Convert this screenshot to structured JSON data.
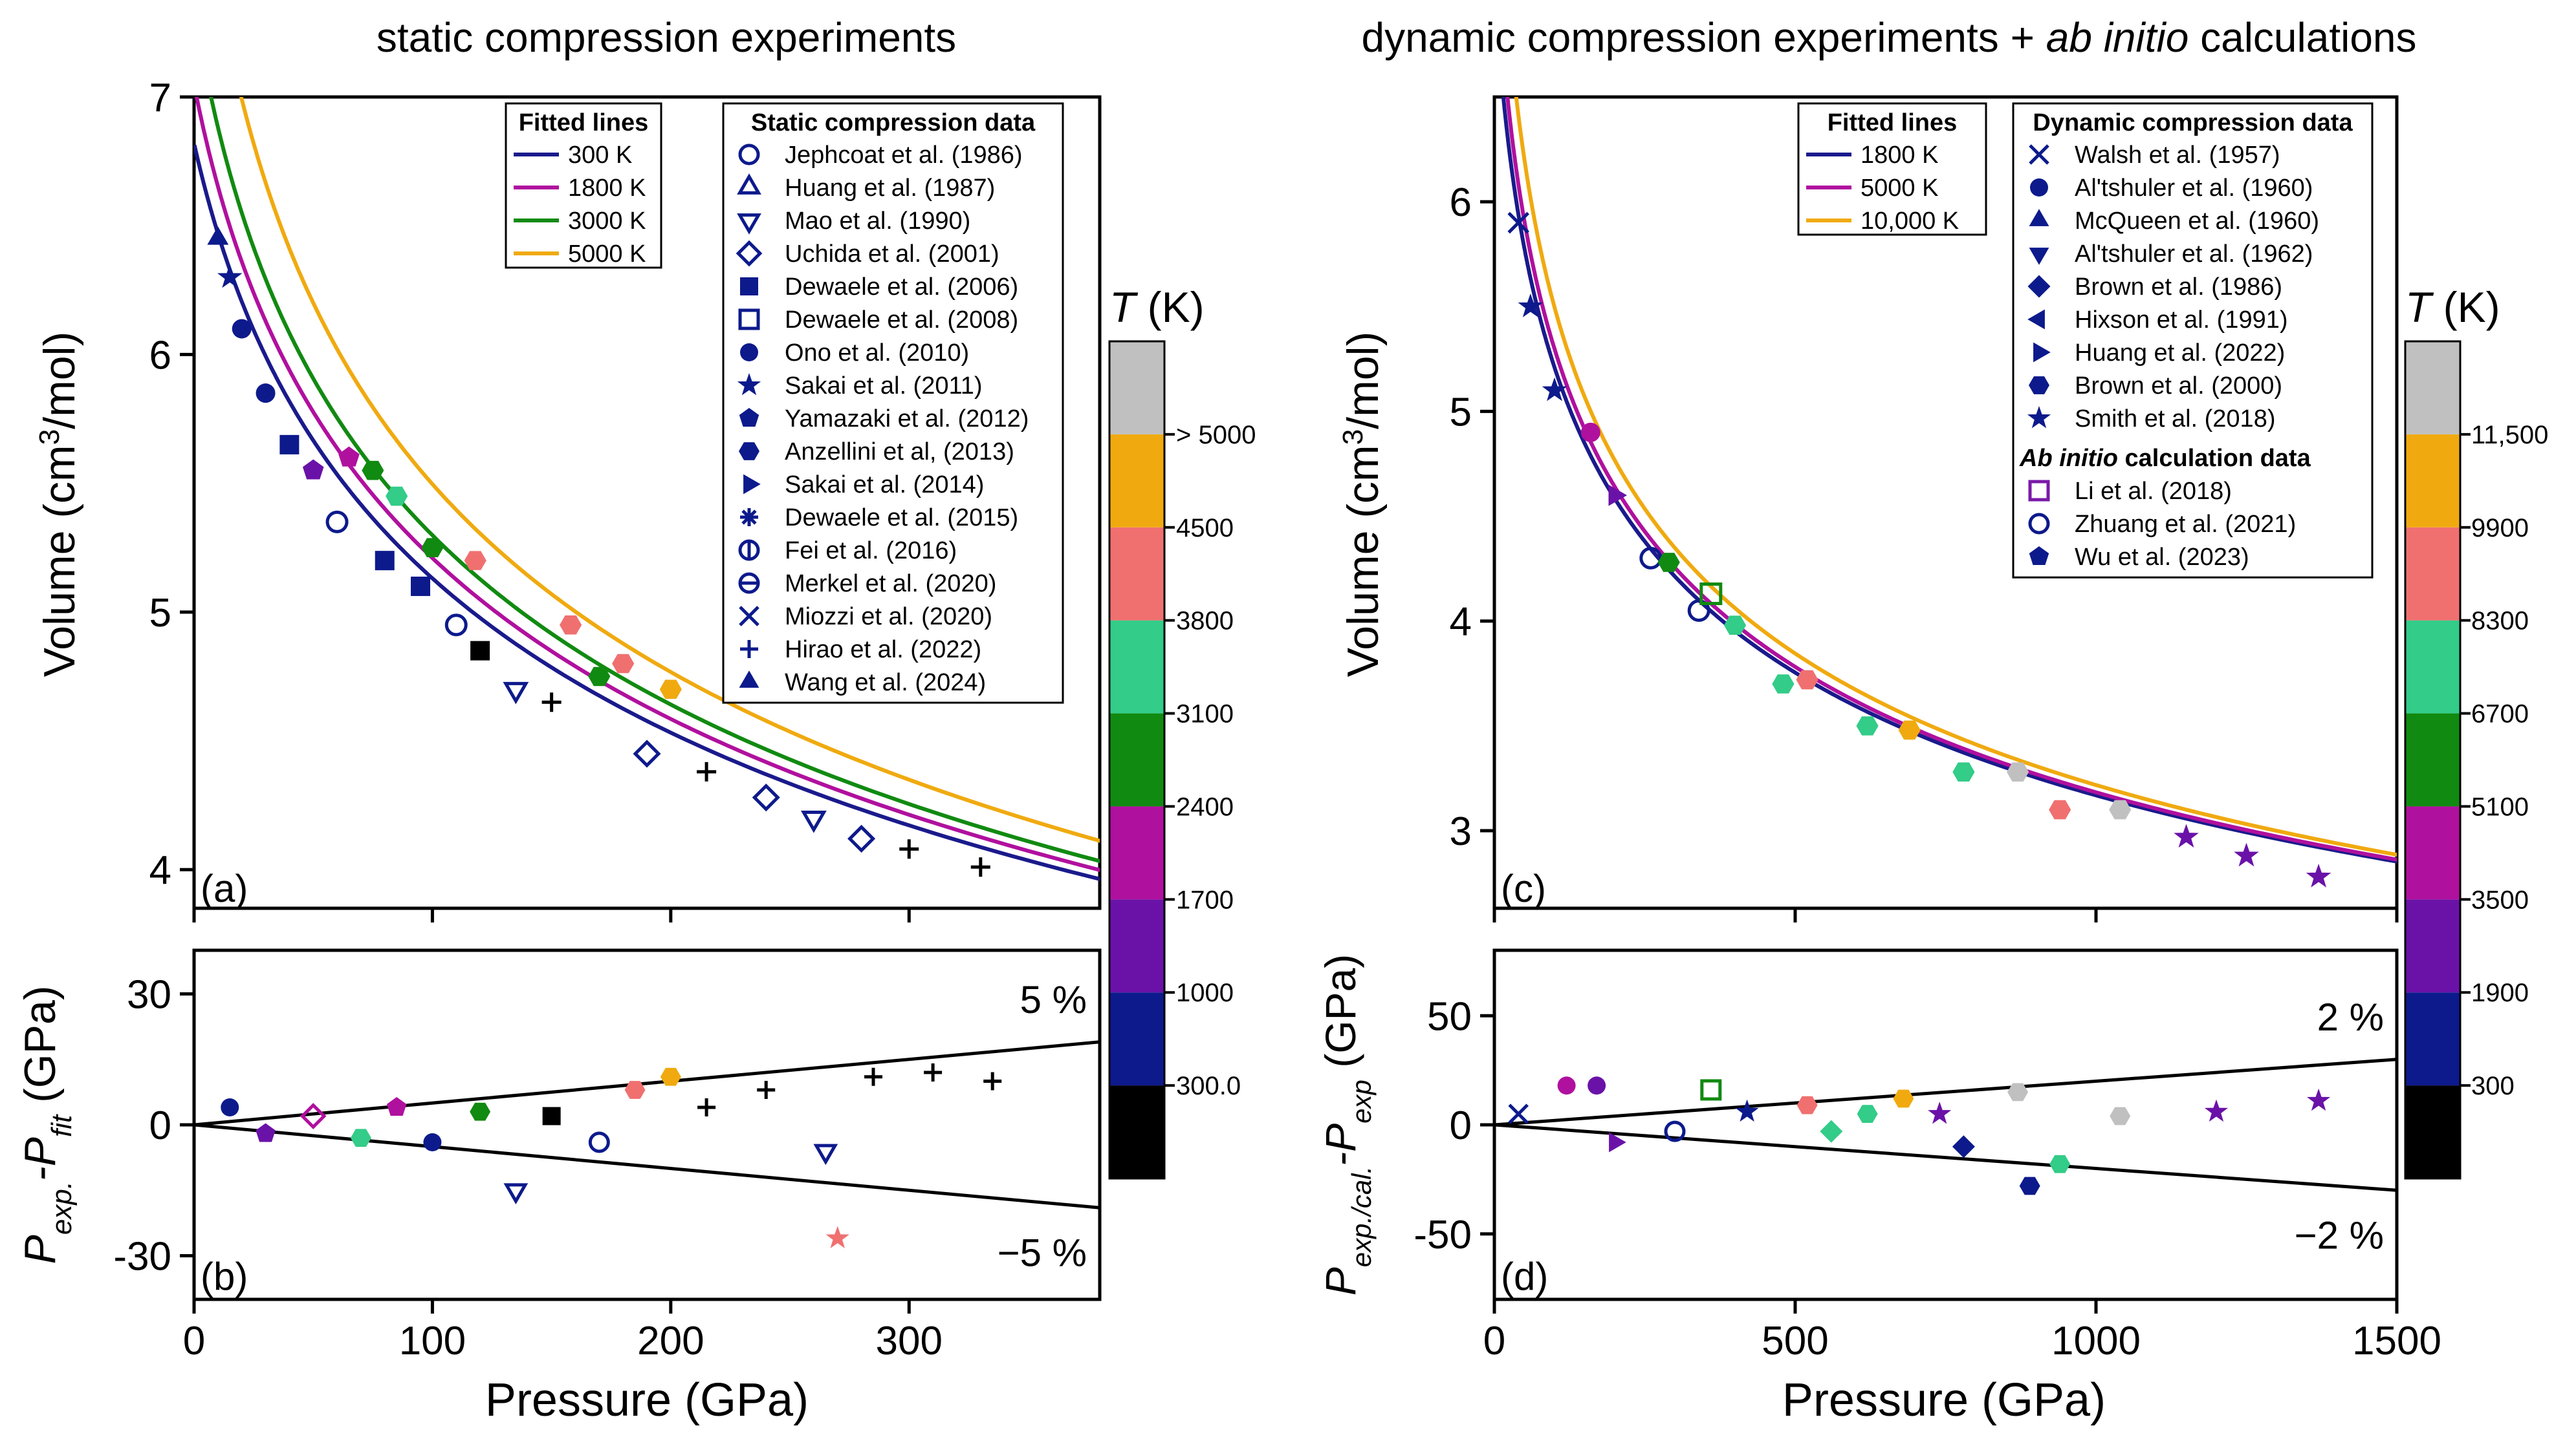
{
  "left_title": "static compression experiments",
  "right_title_pre": "dynamic compression experiments + ",
  "right_title_em": "ab initio",
  "right_title_post": " calculations",
  "chart_data": [
    {
      "panel": "a",
      "type": "scatter",
      "panel_label": "(a)",
      "xlabel": "Pressure (GPa)",
      "ylabel_pre": "Volume (cm",
      "ylabel_sup": "3",
      "ylabel_post": "/mol)",
      "xlim": [
        0,
        380
      ],
      "ylim": [
        3.85,
        7.0
      ],
      "yticks": [
        4,
        5,
        6,
        7
      ],
      "fitted_title": "Fitted lines",
      "fitted_lines": [
        {
          "name": "300 K",
          "color": "#1a1a8c",
          "V0": 6.82,
          "K0": 165,
          "Kp": 5.3
        },
        {
          "name": "1800 K",
          "color": "#b0109e",
          "V0": 7.05,
          "K0": 148,
          "Kp": 5.3
        },
        {
          "name": "3000 K",
          "color": "#118a11",
          "V0": 7.35,
          "K0": 128,
          "Kp": 5.3
        },
        {
          "name": "5000 K",
          "color": "#f0aa10",
          "V0": 8.1,
          "K0": 92,
          "Kp": 5.3
        }
      ],
      "data_title": "Static compression data",
      "legend_entries": [
        {
          "name": "Jephcoat et al. (1986)",
          "marker": "circle-open"
        },
        {
          "name": "Huang et al. (1987)",
          "marker": "triangle-up-open"
        },
        {
          "name": "Mao et al. (1990)",
          "marker": "triangle-down-open"
        },
        {
          "name": "Uchida et al. (2001)",
          "marker": "diamond-open"
        },
        {
          "name": "Dewaele et al. (2006)",
          "marker": "square-filled"
        },
        {
          "name": "Dewaele et al. (2008)",
          "marker": "square-open"
        },
        {
          "name": "Ono et al. (2010)",
          "marker": "circle-filled"
        },
        {
          "name": "Sakai et al. (2011)",
          "marker": "star-filled"
        },
        {
          "name": "Yamazaki et al. (2012)",
          "marker": "pentagon-filled"
        },
        {
          "name": "Anzellini et al, (2013)",
          "marker": "hexagon-filled"
        },
        {
          "name": "Sakai et al. (2014)",
          "marker": "triangle-right-filled"
        },
        {
          "name": "Dewaele et al. (2015)",
          "marker": "asterisk"
        },
        {
          "name": "Fei et al. (2016)",
          "marker": "circle-vbar"
        },
        {
          "name": "Merkel et al. (2020)",
          "marker": "circle-hbar"
        },
        {
          "name": "Miozzi et al. (2020)",
          "marker": "cross"
        },
        {
          "name": "Hirao et al. (2022)",
          "marker": "plus"
        },
        {
          "name": "Wang et al. (2024)",
          "marker": "triangle-up-filled"
        }
      ],
      "points": [
        [
          10,
          6.45,
          "#0d1a8c",
          "triangle-up-filled"
        ],
        [
          15,
          6.3,
          "#0d1a8c",
          "star-filled"
        ],
        [
          20,
          6.1,
          "#0d1a8c",
          "circle-filled"
        ],
        [
          30,
          5.85,
          "#0d1a8c",
          "circle-filled"
        ],
        [
          40,
          5.65,
          "#0d1a8c",
          "square-filled"
        ],
        [
          50,
          5.55,
          "#6a12a8",
          "pentagon-filled"
        ],
        [
          60,
          5.35,
          "#0d1a8c",
          "circle-open"
        ],
        [
          65,
          5.6,
          "#b0109e",
          "pentagon-filled"
        ],
        [
          75,
          5.55,
          "#118a11",
          "hexagon-filled"
        ],
        [
          80,
          5.2,
          "#0d1a8c",
          "square-filled"
        ],
        [
          85,
          5.45,
          "#33cc88",
          "hexagon-filled"
        ],
        [
          95,
          5.1,
          "#0d1a8c",
          "square-filled"
        ],
        [
          100,
          5.25,
          "#118a11",
          "hexagon-filled"
        ],
        [
          110,
          4.95,
          "#0d1a8c",
          "circle-open"
        ],
        [
          118,
          5.2,
          "#f07070",
          "hexagon-filled"
        ],
        [
          120,
          4.85,
          "#000000",
          "square-filled"
        ],
        [
          135,
          4.7,
          "#0d1a8c",
          "triangle-down-open"
        ],
        [
          150,
          4.65,
          "#000000",
          "plus"
        ],
        [
          158,
          4.95,
          "#f07070",
          "hexagon-filled"
        ],
        [
          170,
          4.75,
          "#118a11",
          "hexagon-filled"
        ],
        [
          180,
          4.8,
          "#f07070",
          "hexagon-filled"
        ],
        [
          190,
          4.45,
          "#0d1a8c",
          "diamond-open"
        ],
        [
          200,
          4.7,
          "#f0aa10",
          "hexagon-filled"
        ],
        [
          215,
          4.38,
          "#000000",
          "plus"
        ],
        [
          240,
          4.28,
          "#0d1a8c",
          "diamond-open"
        ],
        [
          260,
          4.2,
          "#0d1a8c",
          "triangle-down-open"
        ],
        [
          280,
          4.12,
          "#0d1a8c",
          "diamond-open"
        ],
        [
          300,
          4.08,
          "#000000",
          "plus"
        ],
        [
          330,
          4.01,
          "#000000",
          "plus"
        ]
      ]
    },
    {
      "panel": "b",
      "type": "scatter",
      "panel_label": "(b)",
      "xlabel": "Pressure (GPa)",
      "ylabel_main": "P",
      "ylabel_sub1": "exp.",
      "ylabel_mid": "-P",
      "ylabel_sub2": "fit",
      "ylabel_unit": " (GPa)",
      "xlim": [
        0,
        380
      ],
      "ylim": [
        -40,
        40
      ],
      "xticks": [
        0,
        100,
        200,
        300
      ],
      "yticks": [
        -30,
        0,
        30
      ],
      "band_label_upper": "5 %",
      "band_label_lower": "−5 %",
      "band_percent": 5,
      "points": [
        [
          15,
          4,
          "#0d1a8c",
          "circle-filled"
        ],
        [
          30,
          -2,
          "#6a12a8",
          "pentagon-filled"
        ],
        [
          50,
          2,
          "#b0109e",
          "diamond-open"
        ],
        [
          70,
          -3,
          "#33cc88",
          "hexagon-filled"
        ],
        [
          85,
          4,
          "#b0109e",
          "pentagon-filled"
        ],
        [
          100,
          -4,
          "#0d1a8c",
          "circle-filled"
        ],
        [
          120,
          3,
          "#118a11",
          "hexagon-filled"
        ],
        [
          135,
          -15,
          "#0d1a8c",
          "triangle-down-open"
        ],
        [
          150,
          2,
          "#000000",
          "square-filled"
        ],
        [
          170,
          -4,
          "#0d1a8c",
          "circle-open"
        ],
        [
          185,
          8,
          "#f07070",
          "hexagon-filled"
        ],
        [
          200,
          11,
          "#f0aa10",
          "hexagon-filled"
        ],
        [
          215,
          4,
          "#000000",
          "plus"
        ],
        [
          240,
          8,
          "#000000",
          "plus"
        ],
        [
          265,
          -6,
          "#0d1a8c",
          "triangle-down-open"
        ],
        [
          270,
          -26,
          "#f07070",
          "star-filled"
        ],
        [
          285,
          11,
          "#000000",
          "plus"
        ],
        [
          310,
          12,
          "#000000",
          "plus"
        ],
        [
          335,
          10,
          "#000000",
          "plus"
        ]
      ]
    },
    {
      "panel": "c",
      "type": "scatter",
      "panel_label": "(c)",
      "xlabel": "Pressure (GPa)",
      "ylabel_pre": "Volume (cm",
      "ylabel_sup": "3",
      "ylabel_post": "/mol)",
      "xlim": [
        0,
        1500
      ],
      "ylim": [
        2.63,
        6.5
      ],
      "yticks": [
        3,
        4,
        5,
        6
      ],
      "fitted_title": "Fitted lines",
      "fitted_lines": [
        {
          "name": "1800 K",
          "color": "#1a1a8c",
          "V0": 7.05,
          "K0": 148,
          "Kp": 5.3
        },
        {
          "name": "5000 K",
          "color": "#b0109e",
          "V0": 7.35,
          "K0": 128,
          "Kp": 5.3
        },
        {
          "name": "10,000 K",
          "color": "#f0aa10",
          "V0": 8.1,
          "K0": 92,
          "Kp": 5.3
        }
      ],
      "data_title": "Dynamic compression data",
      "legend_entries": [
        {
          "name": "Walsh et al. (1957)",
          "marker": "cross"
        },
        {
          "name": "Al'tshuler et al. (1960)",
          "marker": "circle-filled"
        },
        {
          "name": "McQueen et al. (1960)",
          "marker": "triangle-up-filled"
        },
        {
          "name": "Al'tshuler et al. (1962)",
          "marker": "triangle-down-filled"
        },
        {
          "name": "Brown et al. (1986)",
          "marker": "diamond-filled"
        },
        {
          "name": "Hixson et al. (1991)",
          "marker": "triangle-left-filled"
        },
        {
          "name": "Huang et al. (2022)",
          "marker": "triangle-right-filled"
        },
        {
          "name": "Brown et al. (2000)",
          "marker": "hexagon-filled"
        },
        {
          "name": "Smith et al. (2018)",
          "marker": "star-filled"
        }
      ],
      "abinitio_title_em": "Ab initio",
      "abinitio_title_rest": " calculation data",
      "abinitio_entries": [
        {
          "name": "Li et al. (2018)",
          "marker": "square-open"
        },
        {
          "name": "Zhuang et al. (2021)",
          "marker": "circle-open"
        },
        {
          "name": "Wu et al. (2023)",
          "marker": "pentagon-filled"
        }
      ],
      "points": [
        [
          40,
          5.9,
          "#0d1a8c",
          "cross"
        ],
        [
          60,
          5.5,
          "#0d1a8c",
          "star-filled"
        ],
        [
          100,
          5.1,
          "#0d1a8c",
          "star-filled"
        ],
        [
          160,
          4.9,
          "#b0109e",
          "circle-filled"
        ],
        [
          200,
          4.6,
          "#6a12a8",
          "triangle-right-filled"
        ],
        [
          260,
          4.3,
          "#0d1a8c",
          "circle-open"
        ],
        [
          290,
          4.28,
          "#118a11",
          "hexagon-filled"
        ],
        [
          340,
          4.05,
          "#0d1a8c",
          "circle-open"
        ],
        [
          360,
          4.13,
          "#118a11",
          "square-open"
        ],
        [
          400,
          3.98,
          "#33cc88",
          "hexagon-filled"
        ],
        [
          480,
          3.7,
          "#33cc88",
          "hexagon-filled"
        ],
        [
          520,
          3.72,
          "#f07070",
          "hexagon-filled"
        ],
        [
          620,
          3.5,
          "#33cc88",
          "hexagon-filled"
        ],
        [
          690,
          3.48,
          "#f0aa10",
          "hexagon-filled"
        ],
        [
          780,
          3.28,
          "#33cc88",
          "hexagon-filled"
        ],
        [
          870,
          3.28,
          "#c0c0c0",
          "hexagon-filled"
        ],
        [
          940,
          3.1,
          "#f07070",
          "hexagon-filled"
        ],
        [
          1040,
          3.1,
          "#c0c0c0",
          "hexagon-filled"
        ],
        [
          1150,
          2.97,
          "#6a12a8",
          "star-filled"
        ],
        [
          1250,
          2.88,
          "#6a12a8",
          "star-filled"
        ],
        [
          1370,
          2.78,
          "#6a12a8",
          "star-filled"
        ]
      ]
    },
    {
      "panel": "d",
      "type": "scatter",
      "panel_label": "(d)",
      "xlabel": "Pressure (GPa)",
      "ylabel_main": "P",
      "ylabel_sub1": "exp./cal.",
      "ylabel_mid": "-P",
      "ylabel_sub2": "exp",
      "ylabel_unit": " (GPa)",
      "xlim": [
        0,
        1500
      ],
      "ylim": [
        -80,
        80
      ],
      "xticks": [
        0,
        500,
        1000,
        1500
      ],
      "yticks": [
        -50,
        0,
        50
      ],
      "band_label_upper": "2 %",
      "band_label_lower": "−2 %",
      "band_percent": 2,
      "points": [
        [
          40,
          5,
          "#0d1a8c",
          "cross"
        ],
        [
          120,
          18,
          "#b0109e",
          "circle-filled"
        ],
        [
          170,
          18,
          "#6a12a8",
          "circle-filled"
        ],
        [
          200,
          -8,
          "#6a12a8",
          "triangle-right-filled"
        ],
        [
          300,
          -3,
          "#0d1a8c",
          "circle-open"
        ],
        [
          360,
          16,
          "#118a11",
          "square-open"
        ],
        [
          420,
          6,
          "#0d1a8c",
          "star-filled"
        ],
        [
          520,
          9,
          "#f07070",
          "hexagon-filled"
        ],
        [
          560,
          -3,
          "#33cc88",
          "diamond-filled"
        ],
        [
          620,
          5,
          "#33cc88",
          "hexagon-filled"
        ],
        [
          680,
          12,
          "#f0aa10",
          "hexagon-filled"
        ],
        [
          740,
          5,
          "#6a12a8",
          "star-filled"
        ],
        [
          780,
          -10,
          "#0d1a8c",
          "diamond-filled"
        ],
        [
          870,
          15,
          "#c0c0c0",
          "hexagon-filled"
        ],
        [
          890,
          -28,
          "#0d1a8c",
          "hexagon-filled"
        ],
        [
          940,
          -18,
          "#33cc88",
          "hexagon-filled"
        ],
        [
          1040,
          4,
          "#c0c0c0",
          "hexagon-filled"
        ],
        [
          1200,
          6,
          "#6a12a8",
          "star-filled"
        ],
        [
          1370,
          11,
          "#6a12a8",
          "star-filled"
        ]
      ]
    }
  ],
  "colorbar_left": {
    "title": "T",
    "unit": " (K)",
    "colors": [
      "#000000",
      "#0d1a8c",
      "#6a12a8",
      "#b0109e",
      "#118a11",
      "#33cc88",
      "#f07070",
      "#f0aa10",
      "#c0c0c0"
    ],
    "labels": [
      "300.0",
      "1000",
      "1700",
      "2400",
      "3100",
      "3800",
      "4500",
      "> 5000"
    ]
  },
  "colorbar_right": {
    "title": "T",
    "unit": " (K)",
    "colors": [
      "#000000",
      "#0d1a8c",
      "#6a12a8",
      "#b0109e",
      "#118a11",
      "#33cc88",
      "#f07070",
      "#f0aa10",
      "#c0c0c0"
    ],
    "labels": [
      "300",
      "1900",
      "3500",
      "5100",
      "6700",
      "8300",
      "9900",
      "11,500"
    ]
  }
}
